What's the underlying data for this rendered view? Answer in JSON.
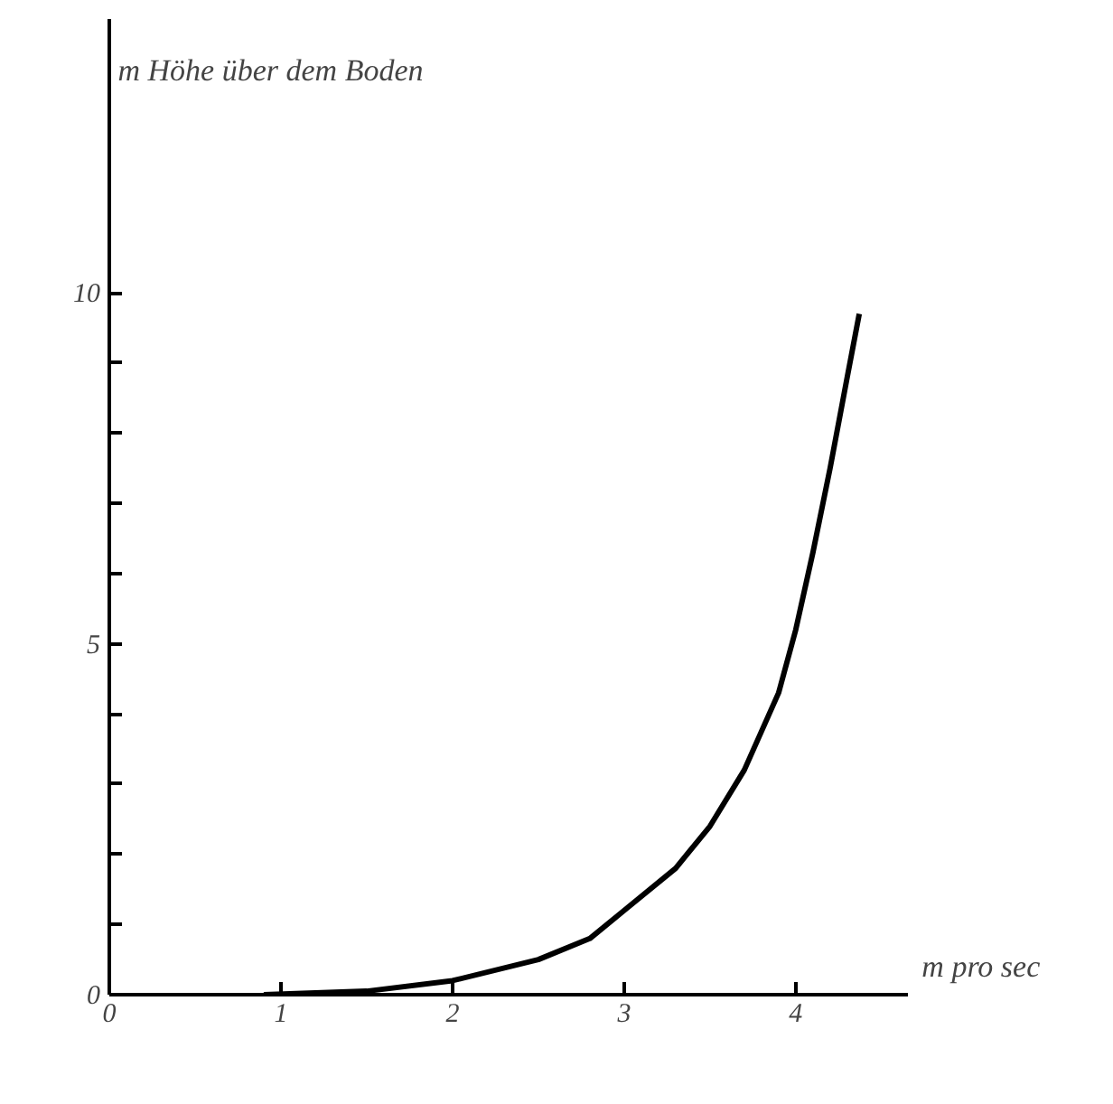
{
  "chart_data": {
    "type": "line",
    "xlabel": "m pro sec",
    "ylabel": "m Höhe über dem Boden",
    "x": [
      0.9,
      1.5,
      2,
      2.5,
      2.8,
      3,
      3.3,
      3.5,
      3.7,
      3.9,
      4.0,
      4.1,
      4.2,
      4.3,
      4.37
    ],
    "series": [
      {
        "color": "#000000",
        "values": [
          0,
          0.05,
          0.2,
          0.5,
          0.8,
          1.2,
          1.8,
          2.4,
          3.2,
          4.3,
          5.2,
          6.3,
          7.5,
          8.8,
          9.7
        ]
      }
    ],
    "xlim": [
      0,
      4.65
    ],
    "ylim": [
      0,
      13.9
    ],
    "xticks": [
      0,
      1,
      2,
      3,
      4
    ],
    "yticks": [
      0,
      {
        "value": 1,
        "label": null
      },
      {
        "value": 2,
        "label": null
      },
      {
        "value": 3,
        "label": null
      },
      {
        "value": 4,
        "label": null
      },
      5,
      {
        "value": 6,
        "label": null
      },
      {
        "value": 7,
        "label": null
      },
      {
        "value": 8,
        "label": null
      },
      {
        "value": 9,
        "label": null
      },
      10
    ],
    "grid": false,
    "marker": "none",
    "line_style": "solid"
  }
}
